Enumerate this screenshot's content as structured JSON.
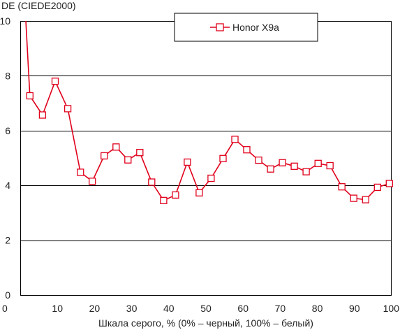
{
  "chart_data": {
    "type": "line",
    "title": "DE (CIEDE2000)",
    "xlabel": "Шкала серого, % (0% – черный, 100% – белый)",
    "ylabel": "",
    "xlim": [
      0,
      100
    ],
    "ylim": [
      0,
      10
    ],
    "xticks": [
      0,
      10,
      20,
      30,
      40,
      50,
      60,
      70,
      80,
      90,
      100
    ],
    "yticks": [
      0,
      2,
      4,
      6,
      8,
      10
    ],
    "grid": "horizontal",
    "legend_position": "top-center",
    "series": [
      {
        "name": "Honor X9a",
        "color": "#e0001b",
        "marker": "square",
        "x": [
          1.5,
          2.6,
          6.0,
          9.4,
          12.8,
          16.2,
          19.4,
          22.6,
          25.8,
          29.0,
          32.2,
          35.4,
          38.6,
          41.8,
          45.0,
          48.2,
          51.4,
          54.6,
          57.8,
          61.0,
          64.2,
          67.4,
          70.6,
          73.8,
          77.0,
          80.2,
          83.4,
          86.6,
          89.8,
          93.0,
          96.2,
          99.4
        ],
        "values": [
          10.0,
          7.27,
          6.57,
          7.8,
          6.8,
          4.48,
          4.15,
          5.08,
          5.4,
          4.93,
          5.2,
          4.12,
          3.45,
          3.65,
          4.85,
          3.73,
          4.26,
          4.98,
          5.68,
          5.3,
          4.92,
          4.6,
          4.83,
          4.7,
          4.5,
          4.8,
          4.72,
          3.95,
          3.53,
          3.48,
          3.93,
          4.07
        ]
      }
    ]
  }
}
